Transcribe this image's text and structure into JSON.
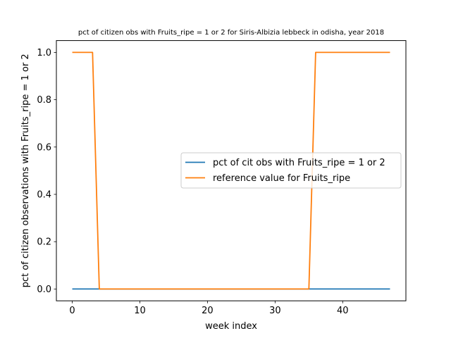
{
  "chart_data": {
    "type": "line",
    "title": "pct of citizen obs with Fruits_ripe = 1 or 2 for Siris-Albizia lebbeck in odisha, year 2018",
    "xlabel": "week index",
    "ylabel": "pct of citizen observations with Fruits_ripe = 1 or 2",
    "xlim": [
      -2.35,
      49.35
    ],
    "ylim": [
      -0.05,
      1.05
    ],
    "xticks": [
      0,
      10,
      20,
      30,
      40
    ],
    "yticks": [
      0.0,
      0.2,
      0.4,
      0.6,
      0.8,
      1.0
    ],
    "xtick_labels": [
      "0",
      "10",
      "20",
      "30",
      "40"
    ],
    "ytick_labels": [
      "0.0",
      "0.2",
      "0.4",
      "0.6",
      "0.8",
      "1.0"
    ],
    "grid": false,
    "legend_position": "center-right",
    "series": [
      {
        "name": "pct of cit obs with Fruits_ripe = 1 or 2",
        "color": "#1f77b4",
        "x": [
          0,
          47
        ],
        "y": [
          0,
          0
        ]
      },
      {
        "name": "reference value for Fruits_ripe",
        "color": "#ff7f0e",
        "x": [
          0,
          3,
          4,
          35,
          36,
          47
        ],
        "y": [
          1,
          1,
          0,
          0,
          1,
          1
        ]
      }
    ]
  }
}
